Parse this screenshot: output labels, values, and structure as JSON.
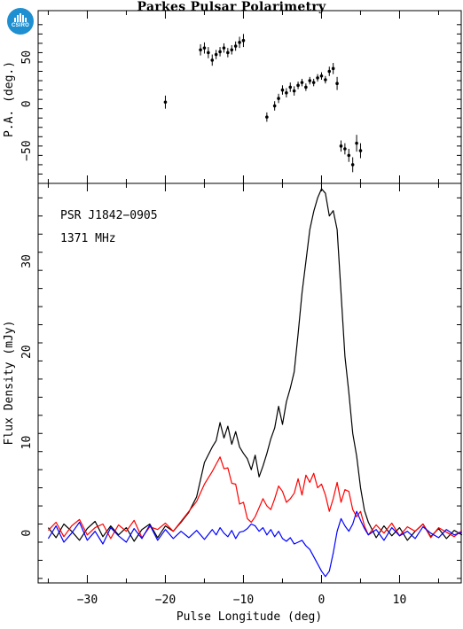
{
  "title": "Parkes Pulsar Polarimetry",
  "logo": {
    "text": "CSIRO",
    "color": "#1e8fd0"
  },
  "pa_panel": {
    "ylabel": "P.A. (deg.)",
    "ylim": [
      -85,
      100
    ],
    "yticks": [
      -50,
      0,
      50
    ],
    "yticklabels": [
      "−50",
      "0",
      "50"
    ]
  },
  "flux_panel": {
    "ylabel": "Flux Density (mJy)",
    "xlabel": "Pulse Longitude (deg)",
    "ylim": [
      -5.5,
      38.6
    ],
    "yticks": [
      0,
      10,
      20,
      30
    ],
    "yticklabels": [
      "0",
      "10",
      "20",
      "30"
    ],
    "annotations": [
      "PSR J1842−0905",
      "1371 MHz"
    ]
  },
  "xaxis": {
    "xlim": [
      -36.3,
      17.9
    ],
    "xticks": [
      -30,
      -20,
      -10,
      0,
      10
    ],
    "xticklabels": [
      "−30",
      "−20",
      "−10",
      "0",
      "10"
    ]
  },
  "chart_data": {
    "type": "line",
    "colors": {
      "total": "#000000",
      "linear": "#ff0000",
      "circular": "#0000ff",
      "pa": "#000000"
    },
    "x": [
      -35,
      -34,
      -33,
      -32,
      -31,
      -30,
      -29,
      -28,
      -27,
      -26,
      -25,
      -24,
      -23,
      -22,
      -21,
      -20,
      -19,
      -18,
      -17,
      -16,
      -15,
      -14,
      -13.5,
      -13,
      -12.5,
      -12,
      -11.5,
      -11,
      -10.5,
      -10,
      -9.5,
      -9,
      -8.5,
      -8,
      -7.5,
      -7,
      -6.5,
      -6,
      -5.5,
      -5,
      -4.5,
      -4,
      -3.5,
      -3,
      -2.5,
      -2,
      -1.5,
      -1,
      -0.5,
      0,
      0.5,
      1,
      1.5,
      2,
      2.5,
      3,
      3.5,
      4,
      4.5,
      5,
      5.5,
      6,
      7,
      8,
      9,
      10,
      11,
      12,
      13,
      14,
      15,
      16,
      17,
      18
    ],
    "series": [
      {
        "key": "total",
        "values": [
          0.6,
          -0.5,
          1.0,
          0.2,
          -0.8,
          0.5,
          1.3,
          -0.4,
          0.8,
          -0.2,
          0.6,
          -0.9,
          0.4,
          1.0,
          -0.5,
          0.8,
          0.2,
          1.2,
          2.3,
          4.0,
          7.8,
          9.5,
          10.2,
          12.2,
          10.5,
          11.8,
          9.8,
          11.2,
          9.5,
          8.8,
          8.2,
          7.0,
          8.6,
          6.2,
          7.4,
          8.8,
          10.4,
          11.6,
          14.0,
          12.0,
          14.5,
          16.0,
          17.8,
          22.0,
          26.5,
          30.0,
          33.5,
          35.5,
          37.0,
          38.0,
          37.5,
          35.0,
          35.6,
          33.5,
          26.5,
          19.5,
          15.5,
          11.0,
          8.5,
          5.0,
          2.5,
          1.2,
          -0.5,
          0.8,
          -0.3,
          0.6,
          -0.8,
          0.2,
          1.0,
          -0.4,
          0.5,
          -0.6,
          0.3,
          -0.2
        ]
      },
      {
        "key": "linear",
        "values": [
          0.3,
          1.2,
          -0.4,
          0.8,
          1.5,
          -0.2,
          0.6,
          1.0,
          -0.6,
          0.9,
          0.2,
          1.4,
          -0.5,
          0.7,
          0.4,
          1.1,
          0.2,
          1.3,
          2.4,
          3.5,
          5.4,
          6.8,
          7.6,
          8.4,
          7.1,
          7.2,
          5.5,
          5.4,
          3.2,
          3.4,
          1.6,
          1.2,
          1.8,
          2.8,
          3.8,
          3.0,
          2.6,
          3.8,
          5.2,
          4.6,
          3.4,
          3.8,
          4.4,
          6.0,
          4.2,
          6.4,
          5.6,
          6.6,
          5.0,
          5.4,
          4.2,
          2.4,
          3.8,
          5.6,
          3.4,
          4.8,
          4.6,
          2.6,
          1.8,
          2.4,
          0.8,
          -0.2,
          0.9,
          0.0,
          1.1,
          -0.3,
          0.7,
          0.2,
          1.0,
          -0.5,
          0.6,
          0.1,
          -0.4,
          0.3
        ]
      },
      {
        "key": "circular",
        "values": [
          -0.6,
          0.8,
          -1.0,
          0.0,
          1.2,
          -0.8,
          0.2,
          -1.2,
          0.6,
          -0.3,
          -1.0,
          0.5,
          -0.6,
          0.9,
          -0.8,
          0.4,
          -0.6,
          0.2,
          -0.5,
          0.3,
          -0.7,
          0.4,
          -0.2,
          0.6,
          0.0,
          -0.4,
          0.3,
          -0.6,
          0.1,
          0.2,
          0.5,
          1.0,
          0.8,
          0.2,
          0.6,
          -0.2,
          0.4,
          -0.4,
          0.2,
          -0.6,
          -0.9,
          -0.5,
          -1.2,
          -1.0,
          -0.8,
          -1.4,
          -1.8,
          -2.6,
          -3.4,
          -4.2,
          -4.8,
          -4.2,
          -2.2,
          0.2,
          1.6,
          0.8,
          0.2,
          1.0,
          2.4,
          1.4,
          0.5,
          -0.2,
          0.4,
          -0.8,
          0.6,
          -0.3,
          0.2,
          -0.6,
          0.7,
          0.0,
          -0.5,
          0.4,
          -0.2,
          0.1
        ]
      }
    ],
    "pa_points": {
      "x": [
        -20,
        -15.5,
        -15,
        -14.5,
        -14,
        -13.5,
        -13,
        -12.5,
        -12,
        -11.5,
        -11,
        -10.5,
        -10,
        -7,
        -6,
        -5.5,
        -5,
        -4.5,
        -4,
        -3.5,
        -3,
        -2.5,
        -2,
        -1.5,
        -1,
        -0.5,
        0,
        0.5,
        1,
        1.5,
        2,
        2.5,
        3,
        3.5,
        4,
        4.5,
        5
      ],
      "pa": [
        2,
        58,
        60,
        55,
        47,
        53,
        56,
        60,
        55,
        58,
        62,
        66,
        68,
        -14,
        -2,
        6,
        15,
        12,
        18,
        14,
        20,
        23,
        18,
        25,
        23,
        28,
        30,
        26,
        35,
        38,
        22,
        -45,
        -48,
        -55,
        -65,
        -42,
        -50
      ],
      "err": [
        7,
        6,
        6,
        6,
        6,
        5,
        5,
        5,
        5,
        5,
        5,
        6,
        7,
        5,
        5,
        5,
        5,
        5,
        5,
        5,
        4,
        4,
        4,
        4,
        4,
        4,
        4,
        4,
        5,
        6,
        7,
        6,
        6,
        7,
        8,
        9,
        8
      ]
    }
  }
}
